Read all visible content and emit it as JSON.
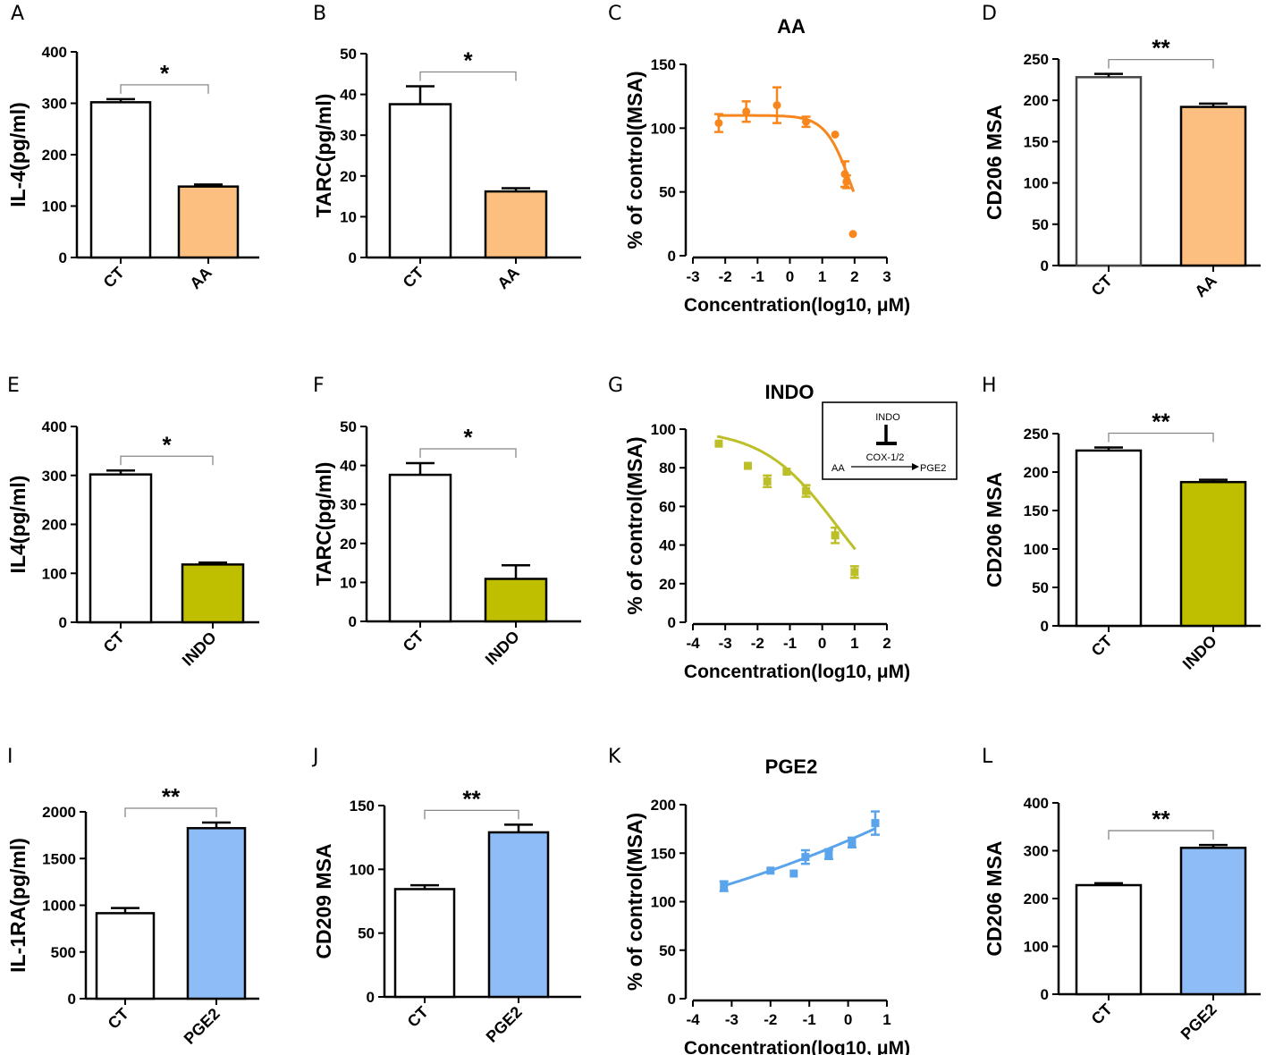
{
  "colors": {
    "axis": "#000000",
    "sig_line": "#888888",
    "AA": "#FDBF80",
    "AA_curve": "#F7861C",
    "INDO": "#BFBF00",
    "INDO_curve": "#BDBF28",
    "PGE2": "#8DBCF7",
    "PGE2_curve": "#5AA4EC",
    "bar_CT": "#FFFFFF"
  },
  "inset": {
    "top": "INDO",
    "enzyme": "COX-1/2",
    "substrate": "AA",
    "product": "PGE2"
  },
  "chart_data": [
    {
      "id": "A",
      "type": "bar",
      "panel_label": "A",
      "ylabel": "IL-4(pg/ml)",
      "ylim": [
        0,
        400
      ],
      "yticks": [
        "0",
        "100",
        "200",
        "300",
        "400"
      ],
      "categories": [
        "CT",
        "AA"
      ],
      "values": [
        302,
        138
      ],
      "errors": [
        6,
        4
      ],
      "fill_colors": [
        "#FFFFFF",
        "#FDBF80"
      ],
      "significance": "*"
    },
    {
      "id": "B",
      "type": "bar",
      "panel_label": "B",
      "ylabel": "TARC(pg/ml)",
      "ylim": [
        0,
        50
      ],
      "yticks": [
        "0",
        "10",
        "20",
        "30",
        "40",
        "50"
      ],
      "categories": [
        "CT",
        "AA"
      ],
      "values": [
        37.6,
        16.2
      ],
      "errors": [
        4.4,
        0.8
      ],
      "fill_colors": [
        "#FFFFFF",
        "#FDBF80"
      ],
      "significance": "*"
    },
    {
      "id": "C",
      "type": "line",
      "panel_label": "C",
      "title": "AA",
      "ylabel": "% of control(MSA)",
      "xlabel": "Concentration(log10, μM)",
      "xlim": [
        -3,
        3
      ],
      "ylim": [
        0,
        150
      ],
      "xticks": [
        "-3",
        "-2",
        "-1",
        "0",
        "1",
        "2",
        "3"
      ],
      "yticks": [
        "0",
        "50",
        "100",
        "150"
      ],
      "x": [
        -2.2,
        -1.35,
        -0.4,
        0.5,
        1.4,
        1.7,
        1.75,
        1.95
      ],
      "y": [
        104,
        113,
        118,
        105,
        95,
        64,
        58,
        17
      ],
      "errors": [
        7,
        8,
        14,
        4,
        0,
        10,
        5,
        0
      ],
      "curve": {
        "top": 110,
        "bottom": 0,
        "ic50": 1.9,
        "hill": -1.1
      },
      "marker": "circle",
      "point_color": "#F7861C",
      "curve_color": "#F7861C"
    },
    {
      "id": "D",
      "type": "bar",
      "panel_label": "D",
      "ylabel": "CD206 MSA",
      "ylim": [
        0,
        250
      ],
      "yticks": [
        "0",
        "50",
        "100",
        "150",
        "200",
        "250"
      ],
      "categories": [
        "CT",
        "AA"
      ],
      "values": [
        228,
        192
      ],
      "errors": [
        4,
        4
      ],
      "fill_colors": [
        "#FFFFFF",
        "#FDBF80"
      ],
      "significance": "**",
      "gray_edge": true
    },
    {
      "id": "E",
      "type": "bar",
      "panel_label": "E",
      "ylabel": "IL4(pg/ml)",
      "ylim": [
        0,
        400
      ],
      "yticks": [
        "0",
        "100",
        "200",
        "300",
        "400"
      ],
      "categories": [
        "CT",
        "INDO"
      ],
      "values": [
        302,
        118
      ],
      "errors": [
        8,
        4
      ],
      "fill_colors": [
        "#FFFFFF",
        "#BFBF00"
      ],
      "significance": "*"
    },
    {
      "id": "F",
      "type": "bar",
      "panel_label": "F",
      "ylabel": "TARC(pg/ml)",
      "ylim": [
        0,
        50
      ],
      "yticks": [
        "0",
        "10",
        "20",
        "30",
        "40",
        "50"
      ],
      "categories": [
        "CT",
        "INDO"
      ],
      "values": [
        37.6,
        10.9
      ],
      "errors": [
        3.0,
        3.5
      ],
      "fill_colors": [
        "#FFFFFF",
        "#BFBF00"
      ],
      "significance": "*"
    },
    {
      "id": "G",
      "type": "line",
      "panel_label": "G",
      "title": "INDO",
      "ylabel": "% of control(MSA)",
      "xlabel": "Concentration(log10, μM)",
      "xlim": [
        -4,
        2
      ],
      "ylim": [
        0,
        100
      ],
      "xticks": [
        "-4",
        "-3",
        "-2",
        "-1",
        "0",
        "1",
        "2"
      ],
      "yticks": [
        "0",
        "20",
        "40",
        "60",
        "80",
        "100"
      ],
      "x": [
        -3.2,
        -2.3,
        -1.7,
        -1.1,
        -0.5,
        0.4,
        1.0
      ],
      "y": [
        92.5,
        81,
        73,
        78,
        68,
        45,
        26
      ],
      "errors": [
        0,
        0,
        3,
        0,
        3,
        4,
        3
      ],
      "curve": {
        "top": 100,
        "bottom": 0,
        "ic50": 0.45,
        "hill": -0.38
      },
      "marker": "square",
      "point_color": "#BDBF28",
      "curve_color": "#BDBF28"
    },
    {
      "id": "H",
      "type": "bar",
      "panel_label": "H",
      "ylabel": "CD206 MSA",
      "ylim": [
        0,
        250
      ],
      "yticks": [
        "0",
        "50",
        "100",
        "150",
        "200",
        "250"
      ],
      "categories": [
        "CT",
        "INDO"
      ],
      "values": [
        228,
        187
      ],
      "errors": [
        4,
        3
      ],
      "fill_colors": [
        "#FFFFFF",
        "#BFBF00"
      ],
      "significance": "**"
    },
    {
      "id": "I",
      "type": "bar",
      "panel_label": "I",
      "ylabel": "IL-1RA(pg/ml)",
      "ylim": [
        0,
        2000
      ],
      "yticks": [
        "0",
        "500",
        "1000",
        "1500",
        "2000"
      ],
      "categories": [
        "CT",
        "PGE2"
      ],
      "values": [
        915,
        1825
      ],
      "errors": [
        55,
        60
      ],
      "fill_colors": [
        "#FFFFFF",
        "#8DBCF7"
      ],
      "significance": "**"
    },
    {
      "id": "J",
      "type": "bar",
      "panel_label": "J",
      "ylabel": "CD209 MSA",
      "ylim": [
        0,
        150
      ],
      "yticks": [
        "0",
        "50",
        "100",
        "150"
      ],
      "categories": [
        "CT",
        "PGE2"
      ],
      "values": [
        84.5,
        129
      ],
      "errors": [
        3,
        6
      ],
      "fill_colors": [
        "#FFFFFF",
        "#8DBCF7"
      ],
      "significance": "**"
    },
    {
      "id": "K",
      "type": "line",
      "panel_label": "K",
      "title": "PGE2",
      "ylabel": "% of control(MSA)",
      "xlabel": "Concentration(log10, μM)",
      "xlim": [
        -4,
        1
      ],
      "ylim": [
        0,
        200
      ],
      "xticks": [
        "-4",
        "-3",
        "-2",
        "-1",
        "0",
        "1"
      ],
      "yticks": [
        "0",
        "50",
        "100",
        "150",
        "200"
      ],
      "x": [
        -3.2,
        -2.0,
        -1.4,
        -1.1,
        -0.5,
        0.1,
        0.7
      ],
      "y": [
        116,
        132,
        129,
        146,
        149,
        161,
        181
      ],
      "errors": [
        5,
        0,
        0,
        7,
        5,
        5,
        12
      ],
      "curve": {
        "type": "exp",
        "a": 163,
        "b": 0.1053
      },
      "marker": "square",
      "point_color": "#5AA4EC",
      "curve_color": "#5AA4EC"
    },
    {
      "id": "L",
      "type": "bar",
      "panel_label": "L",
      "ylabel": "CD206 MSA",
      "ylim": [
        0,
        400
      ],
      "yticks": [
        "0",
        "100",
        "200",
        "300",
        "400"
      ],
      "categories": [
        "CT",
        "PGE2"
      ],
      "values": [
        228,
        306
      ],
      "errors": [
        4,
        6
      ],
      "fill_colors": [
        "#FFFFFF",
        "#8DBCF7"
      ],
      "significance": "**"
    }
  ]
}
